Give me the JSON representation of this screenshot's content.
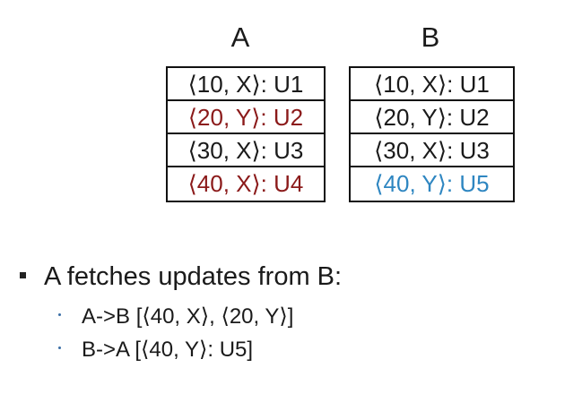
{
  "colors": {
    "text": "#1a1a1a",
    "conflict_red": "#8b1a1a",
    "highlight_blue": "#2e86c1",
    "border": "#111111"
  },
  "replica_a": {
    "title": "A",
    "entries": [
      {
        "text": "⟨10, X⟩: U1",
        "color": "#1a1a1a"
      },
      {
        "text": "⟨20, Y⟩: U2",
        "color": "#8b1a1a"
      },
      {
        "text": "⟨30, X⟩: U3",
        "color": "#1a1a1a"
      },
      {
        "text": "⟨40, X⟩: U4",
        "color": "#8b1a1a"
      }
    ]
  },
  "replica_b": {
    "title": "B",
    "entries": [
      {
        "text": "⟨10, X⟩: U1",
        "color": "#1a1a1a"
      },
      {
        "text": "⟨20, Y⟩: U2",
        "color": "#1a1a1a"
      },
      {
        "text": "⟨30, X⟩: U3",
        "color": "#1a1a1a"
      },
      {
        "text": "⟨40, Y⟩: U5",
        "color": "#2e86c1"
      }
    ]
  },
  "bullets": {
    "main": "A fetches updates from B:",
    "sub": [
      "A->B [⟨40, X⟩, ⟨20, Y⟩]",
      "B->A [⟨40, Y⟩: U5]"
    ]
  }
}
